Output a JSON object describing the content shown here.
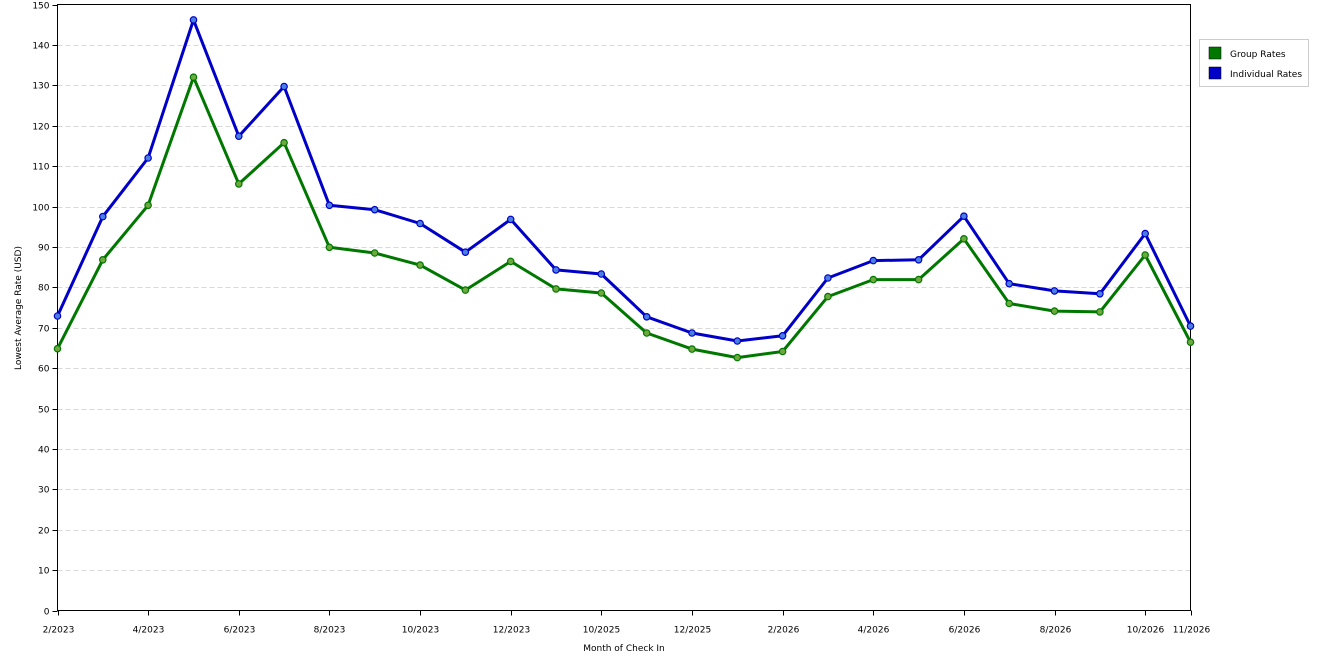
{
  "chart_data": {
    "type": "line",
    "title": "",
    "xlabel": "Month of Check In",
    "ylabel": "Lowest Average Rate (USD)",
    "ylim": [
      0,
      150
    ],
    "ytick_step": 10,
    "grid": true,
    "legend_position": "top-right",
    "x": [
      "2/2023",
      "3/2023",
      "4/2023",
      "5/2023",
      "6/2023",
      "7/2023",
      "8/2023",
      "9/2023",
      "10/2023",
      "11/2023",
      "12/2023",
      "9/2025",
      "10/2025",
      "11/2025",
      "12/2025",
      "1/2026",
      "2/2026",
      "3/2026",
      "4/2026",
      "5/2026",
      "6/2026",
      "7/2026",
      "8/2026",
      "9/2026",
      "10/2026",
      "11/2026"
    ],
    "tick_labels": [
      "2/2023",
      "",
      "4/2023",
      "",
      "6/2023",
      "",
      "8/2023",
      "",
      "10/2023",
      "",
      "12/2023",
      "",
      "10/2025",
      "",
      "12/2025",
      "",
      "2/2026",
      "",
      "4/2026",
      "",
      "6/2026",
      "",
      "8/2026",
      "",
      "10/2026",
      "11/2026"
    ],
    "series": [
      {
        "name": "Group Rates",
        "color": "#007800",
        "marker_color": "#6fa83c",
        "values": [
          64.8,
          86.8,
          100.3,
          132.0,
          105.6,
          115.8,
          89.9,
          88.5,
          85.5,
          79.3,
          86.4,
          79.6,
          78.6,
          68.7,
          64.7,
          62.6,
          64.1,
          77.7,
          81.9,
          81.9,
          92.0,
          76.0,
          74.1,
          73.9,
          88.0,
          66.4
        ]
      },
      {
        "name": "Individual Rates",
        "color": "#0000c8",
        "marker_color": "#4a7fe0",
        "values": [
          72.9,
          97.5,
          112.0,
          146.2,
          117.4,
          129.7,
          100.3,
          99.2,
          95.8,
          88.7,
          96.8,
          84.3,
          83.3,
          72.7,
          68.7,
          66.7,
          68.0,
          82.3,
          86.6,
          86.8,
          97.6,
          80.9,
          79.1,
          78.4,
          93.3,
          70.4
        ]
      }
    ]
  }
}
